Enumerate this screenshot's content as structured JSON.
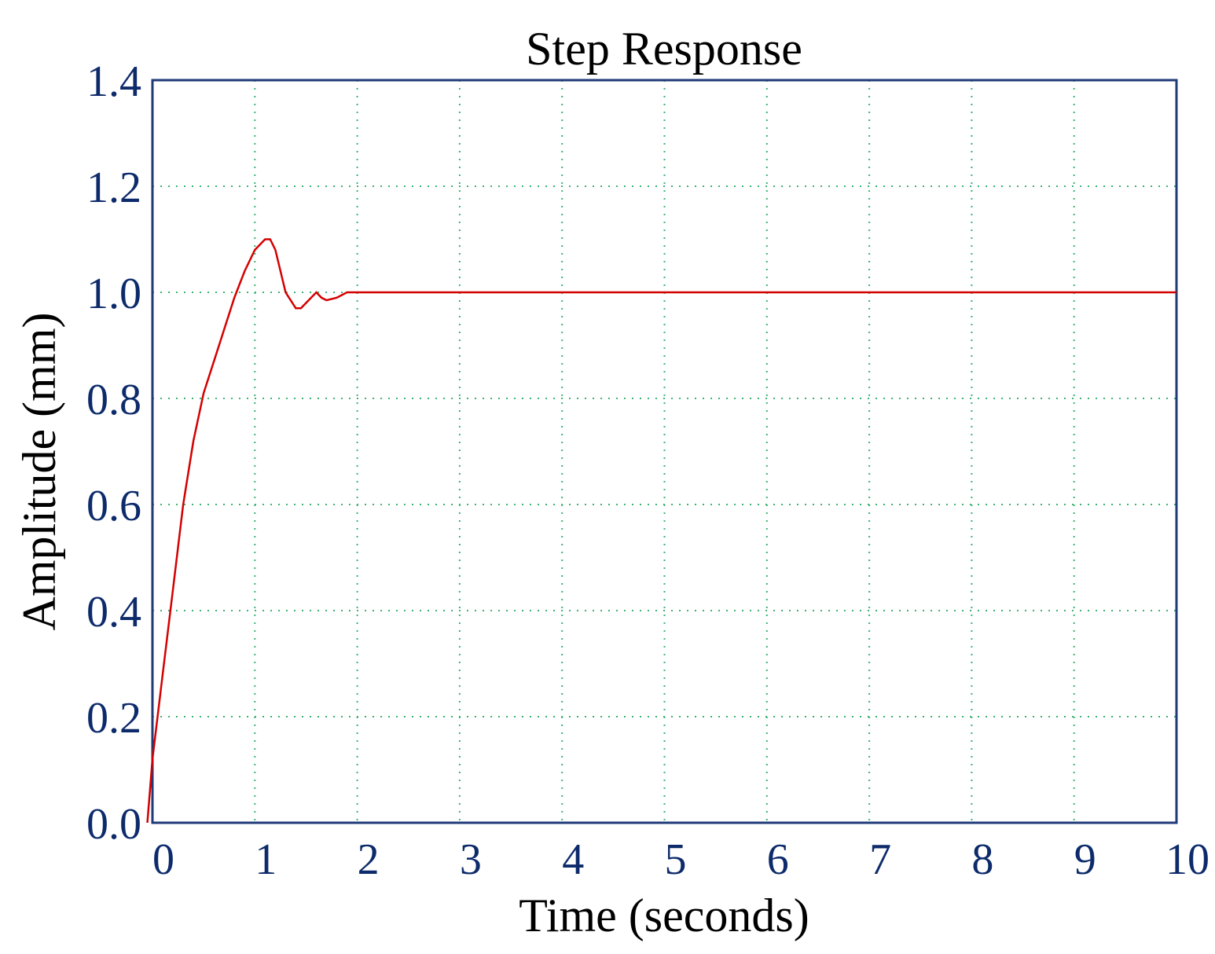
{
  "chart_data": {
    "type": "line",
    "title": "Step Response",
    "xlabel": "Time (seconds)",
    "ylabel": "Amplitude (mm)",
    "xlim": [
      0,
      10
    ],
    "ylim": [
      0,
      1.4
    ],
    "xticks": [
      0,
      1,
      2,
      3,
      4,
      5,
      6,
      7,
      8,
      9,
      10
    ],
    "xtick_labels": [
      "0",
      "1",
      "2",
      "3",
      "4",
      "5",
      "6",
      "7",
      "8",
      "9",
      "10"
    ],
    "yticks": [
      0,
      0.2,
      0.4,
      0.6,
      0.8,
      1.0,
      1.2,
      1.4
    ],
    "ytick_labels": [
      "0.0",
      "0.2",
      "0.4",
      "0.6",
      "0.8",
      "1.0",
      "1.2",
      "1.4"
    ],
    "grid": true,
    "colors": {
      "line": "#d40000",
      "frame": "#1f3a78",
      "tick_text": "#0d2b6b",
      "grid": "#3cb371"
    },
    "series": [
      {
        "x": [
          -0.05,
          0.0,
          0.1,
          0.2,
          0.3,
          0.4,
          0.5,
          0.6,
          0.7,
          0.8,
          0.9,
          1.0,
          1.1,
          1.15,
          1.2,
          1.3,
          1.4,
          1.45,
          1.5,
          1.6,
          1.65,
          1.7,
          1.8,
          1.9,
          2.0,
          3.0,
          4.0,
          5.0,
          6.0,
          7.0,
          8.0,
          9.0,
          10.0
        ],
        "y": [
          0.0,
          0.12,
          0.28,
          0.44,
          0.6,
          0.72,
          0.81,
          0.87,
          0.93,
          0.99,
          1.04,
          1.08,
          1.1,
          1.1,
          1.08,
          1.0,
          0.97,
          0.97,
          0.98,
          1.0,
          0.99,
          0.985,
          0.99,
          1.0,
          1.0,
          1.0,
          1.0,
          1.0,
          1.0,
          1.0,
          1.0,
          1.0,
          1.0
        ]
      }
    ]
  }
}
